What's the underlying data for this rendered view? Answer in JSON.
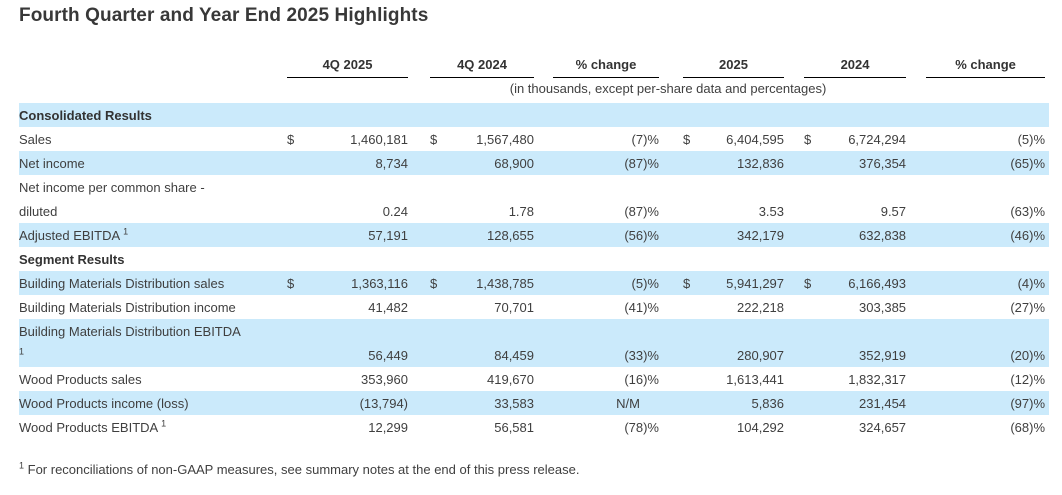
{
  "title": "Fourth Quarter and Year End 2025 Highlights",
  "table": {
    "col_headers": [
      "4Q 2025",
      "4Q 2024",
      "% change",
      "2025",
      "2024",
      "% change"
    ],
    "units_note": "(in thousands, except per-share data and percentages)",
    "rows": [
      {
        "type": "section",
        "label": "Consolidated Results",
        "shaded": true
      },
      {
        "type": "data",
        "label": "Sales",
        "cur1": "$",
        "v1": "1,460,181",
        "cur2": "$",
        "v2": "1,567,480",
        "pc1": "(7)%",
        "cur3": "$",
        "v3": "6,404,595",
        "cur4": "$",
        "v4": "6,724,294",
        "pc2": "(5)%",
        "shaded": false
      },
      {
        "type": "data",
        "label": "Net income",
        "v1": "8,734",
        "v2": "68,900",
        "pc1": "(87)%",
        "v3": "132,836",
        "v4": "376,354",
        "pc2": "(65)%",
        "shaded": true
      },
      {
        "type": "labelonly",
        "label": "Net income per common share -",
        "shaded": false
      },
      {
        "type": "data",
        "label": "diluted",
        "v1": "0.24",
        "v2": "1.78",
        "pc1": "(87)%",
        "v3": "3.53",
        "v4": "9.57",
        "pc2": "(63)%",
        "shaded": false
      },
      {
        "type": "data",
        "label": "Adjusted EBITDA",
        "sup": "1",
        "v1": "57,191",
        "v2": "128,655",
        "pc1": "(56)%",
        "v3": "342,179",
        "v4": "632,838",
        "pc2": "(46)%",
        "shaded": true
      },
      {
        "type": "section",
        "label": "Segment Results",
        "shaded": false
      },
      {
        "type": "data",
        "label": "Building Materials Distribution sales",
        "cur1": "$",
        "v1": "1,363,116",
        "cur2": "$",
        "v2": "1,438,785",
        "pc1": "(5)%",
        "cur3": "$",
        "v3": "5,941,297",
        "cur4": "$",
        "v4": "6,166,493",
        "pc2": "(4)%",
        "shaded": true
      },
      {
        "type": "data",
        "label": "Building Materials Distribution income",
        "v1": "41,482",
        "v2": "70,701",
        "pc1": "(41)%",
        "v3": "222,218",
        "v4": "303,385",
        "pc2": "(27)%",
        "shaded": false
      },
      {
        "type": "labelonly",
        "label": "Building Materials Distribution EBITDA",
        "shaded": true
      },
      {
        "type": "data",
        "label": "",
        "sup": "1",
        "v1": "56,449",
        "v2": "84,459",
        "pc1": "(33)%",
        "v3": "280,907",
        "v4": "352,919",
        "pc2": "(20)%",
        "shaded": true
      },
      {
        "type": "data",
        "label": "Wood Products sales",
        "v1": "353,960",
        "v2": "419,670",
        "pc1": "(16)%",
        "v3": "1,613,441",
        "v4": "1,832,317",
        "pc2": "(12)%",
        "shaded": false
      },
      {
        "type": "data",
        "label": "Wood Products income (loss)",
        "v1": "(13,794)",
        "v2": "33,583",
        "pc1": "N/M",
        "pc1_nm": true,
        "v3": "5,836",
        "v4": "231,454",
        "pc2": "(97)%",
        "shaded": true
      },
      {
        "type": "data",
        "label": "Wood Products EBITDA",
        "sup": "1",
        "v1": "12,299",
        "v2": "56,581",
        "pc1": "(78)%",
        "v3": "104,292",
        "v4": "324,657",
        "pc2": "(68)%",
        "shaded": false
      }
    ]
  },
  "footnote": {
    "marker": "1",
    "text": "For reconciliations of non-GAAP measures, see summary notes at the end of this press release."
  },
  "colors": {
    "row_highlight": "#cbeafb",
    "text": "#3f3f3f",
    "rule": "#000000"
  }
}
